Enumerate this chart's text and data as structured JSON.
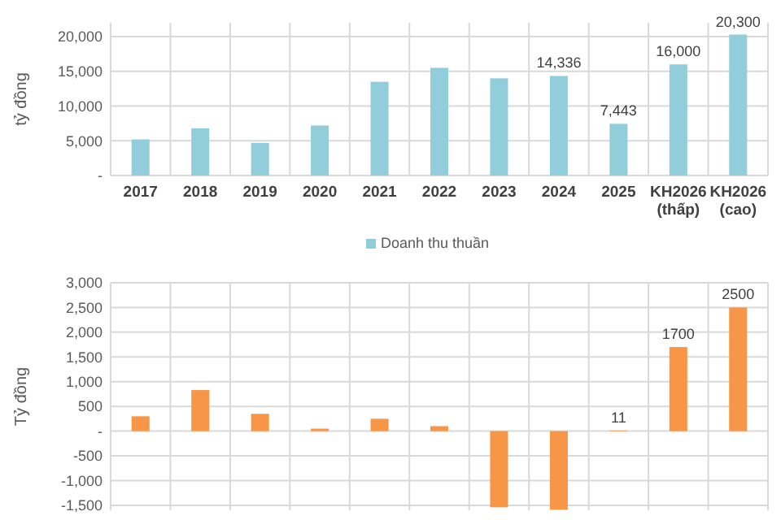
{
  "chart_data": [
    {
      "type": "bar",
      "ylabel": "tỷ đồng",
      "categories": [
        "2017",
        "2018",
        "2019",
        "2020",
        "2021",
        "2022",
        "2023",
        "2024",
        "2025",
        "KH2026\n(thấp)",
        "KH2026\n(cao)"
      ],
      "series": [
        {
          "name": "Doanh thu thuần",
          "color": "#92cddc",
          "values": [
            5200,
            6800,
            4700,
            7200,
            13500,
            15500,
            14000,
            14336,
            7443,
            16000,
            20300
          ],
          "value_labels": [
            null,
            null,
            null,
            null,
            null,
            null,
            null,
            "14,336",
            "7,443",
            "16,000",
            "20,300"
          ]
        }
      ],
      "ylim": [
        0,
        22000
      ],
      "yticks": [
        {
          "value": 0,
          "label": "-"
        },
        {
          "value": 5000,
          "label": "5,000"
        },
        {
          "value": 10000,
          "label": "10,000"
        },
        {
          "value": 15000,
          "label": "15,000"
        },
        {
          "value": 20000,
          "label": "20,000"
        }
      ],
      "grid": true,
      "legend": "bottom"
    },
    {
      "type": "bar",
      "ylabel": "Tỷ đồng",
      "categories": [
        null,
        null,
        null,
        null,
        null,
        null,
        null,
        null,
        null,
        null,
        null
      ],
      "series": [
        {
          "color": "#f79646",
          "values": [
            300,
            830,
            350,
            50,
            250,
            100,
            -1540,
            -1590,
            11,
            1700,
            2500
          ],
          "value_labels": [
            null,
            null,
            null,
            null,
            null,
            null,
            null,
            null,
            "11",
            "1700",
            "2500"
          ]
        }
      ],
      "ylim": [
        -1600,
        3000
      ],
      "yticks": [
        {
          "value": -1500,
          "label": "-1,500"
        },
        {
          "value": -1000,
          "label": "-1,000"
        },
        {
          "value": -500,
          "label": "-500"
        },
        {
          "value": 0,
          "label": "-"
        },
        {
          "value": 500,
          "label": "500"
        },
        {
          "value": 1000,
          "label": "1,000"
        },
        {
          "value": 1500,
          "label": "1,500"
        },
        {
          "value": 2000,
          "label": "2,000"
        },
        {
          "value": 2500,
          "label": "2,500"
        },
        {
          "value": 3000,
          "label": "3,000"
        }
      ],
      "grid": true
    }
  ]
}
